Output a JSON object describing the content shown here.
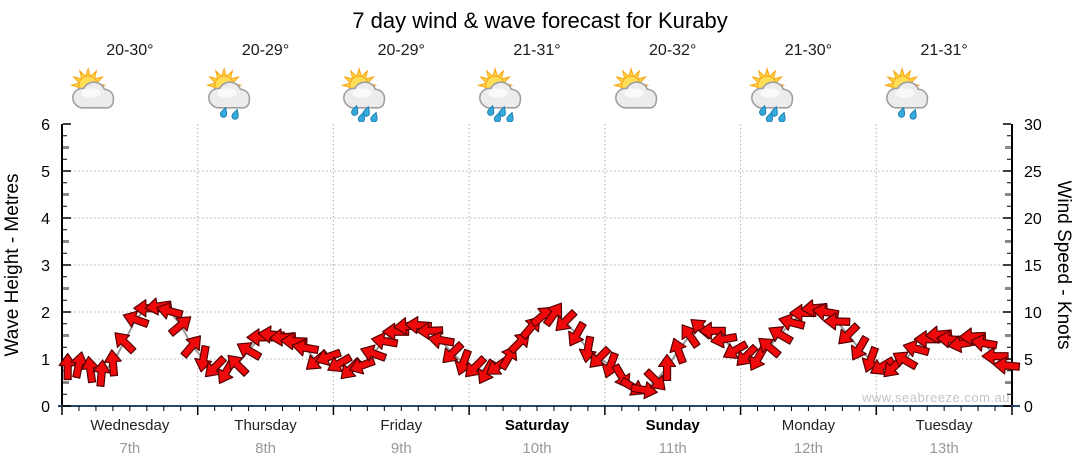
{
  "title": "7 day wind & wave forecast for Kuraby",
  "watermark": "www.seabreeze.com.au",
  "days": [
    {
      "name": "Wednesday",
      "date": "7th",
      "temp": "20-30°",
      "icon": "sun-cloud",
      "weekend": false
    },
    {
      "name": "Thursday",
      "date": "8th",
      "temp": "20-29°",
      "icon": "sun-cloud-light-rain",
      "weekend": false
    },
    {
      "name": "Friday",
      "date": "9th",
      "temp": "20-29°",
      "icon": "sun-cloud-rain",
      "weekend": false
    },
    {
      "name": "Saturday",
      "date": "10th",
      "temp": "21-31°",
      "icon": "sun-cloud-rain",
      "weekend": true
    },
    {
      "name": "Sunday",
      "date": "11th",
      "temp": "20-32°",
      "icon": "sun-cloud",
      "weekend": true
    },
    {
      "name": "Monday",
      "date": "12th",
      "temp": "21-30°",
      "icon": "sun-cloud-rain",
      "weekend": false
    },
    {
      "name": "Tuesday",
      "date": "13th",
      "temp": "21-31°",
      "icon": "sun-cloud-light-rain",
      "weekend": false
    }
  ],
  "colors": {
    "arrow": "#ee0a0a",
    "arrow_outline": "#550000",
    "wind_line": "#9a9a9a",
    "grid": "#b0b0b0",
    "axis": "#000000",
    "half_tick": "#888888",
    "bottom_axis": "#27496d",
    "tick_label": "#000000",
    "watermark": "#c4c4c4",
    "rain_drop": "#35aadd",
    "rain_drop_outline": "#1e7fb0",
    "sun_ray": "#f7a81b",
    "sun_inner": "#ffd23f",
    "sun_disc": "#ffdd55",
    "cloud_fill": "#ececec",
    "cloud_outline": "#9f9f9f"
  },
  "chart_data": {
    "type": "line",
    "title": "7 day wind & wave forecast for Kuraby",
    "x_categories": [
      "Wednesday 7th",
      "Thursday 8th",
      "Friday 9th",
      "Saturday 10th",
      "Sunday 11th",
      "Monday 12th",
      "Tuesday 13th"
    ],
    "left_axis": {
      "label": "Wave Height - Metres",
      "min": 0,
      "max": 6,
      "major_tick": 1,
      "tick_labels": [
        "0",
        "1",
        "2",
        "3",
        "4",
        "5",
        "6"
      ]
    },
    "right_axis": {
      "label": "Wind Speed - Knots",
      "min": 0,
      "max": 30,
      "major_tick": 5,
      "tick_labels": [
        "0",
        "5",
        "10",
        "15",
        "20",
        "25",
        "30"
      ]
    },
    "grid": true,
    "legend": "none",
    "series": [
      {
        "name": "Wind speed and direction",
        "style": "wind-arrows",
        "samples_per_day": 12,
        "speeds_knots": [
          4.2,
          4.4,
          3.9,
          3.5,
          4.6,
          6.8,
          9.2,
          10.4,
          10.6,
          10.1,
          8.6,
          6.4,
          5.0,
          4.1,
          3.6,
          4.4,
          5.9,
          7.3,
          7.6,
          7.3,
          6.9,
          6.2,
          4.8,
          5.2,
          4.5,
          3.9,
          4.3,
          5.6,
          6.9,
          7.9,
          8.5,
          8.6,
          8.0,
          7.0,
          5.6,
          4.6,
          4.1,
          3.6,
          4.2,
          5.2,
          6.8,
          8.4,
          9.6,
          9.8,
          9.0,
          7.6,
          6.0,
          5.1,
          4.3,
          3.1,
          2.0,
          1.7,
          2.7,
          4.1,
          5.9,
          7.5,
          8.3,
          8.0,
          7.1,
          5.9,
          5.3,
          5.0,
          6.3,
          7.6,
          8.9,
          9.9,
          10.4,
          10.0,
          9.0,
          7.6,
          6.1,
          4.9,
          4.2,
          4.1,
          4.9,
          6.1,
          7.1,
          7.6,
          7.1,
          6.6,
          7.4,
          6.7,
          5.3,
          4.3
        ],
        "directions_deg": [
          -90,
          -78,
          -98,
          -85,
          -95,
          -135,
          -160,
          180,
          172,
          -165,
          -40,
          -50,
          100,
          135,
          120,
          -135,
          -150,
          180,
          185,
          175,
          182,
          190,
          140,
          160,
          150,
          135,
          160,
          -160,
          -170,
          180,
          176,
          184,
          178,
          190,
          135,
          110,
          135,
          120,
          145,
          -60,
          -45,
          -50,
          -40,
          -55,
          135,
          120,
          100,
          135,
          110,
          60,
          30,
          10,
          45,
          -90,
          -110,
          -125,
          -140,
          180,
          170,
          150,
          135,
          120,
          -140,
          -150,
          -165,
          180,
          175,
          -170,
          182,
          135,
          120,
          110,
          150,
          135,
          -150,
          -165,
          180,
          175,
          185,
          170,
          178,
          190,
          180,
          185
        ]
      }
    ]
  }
}
